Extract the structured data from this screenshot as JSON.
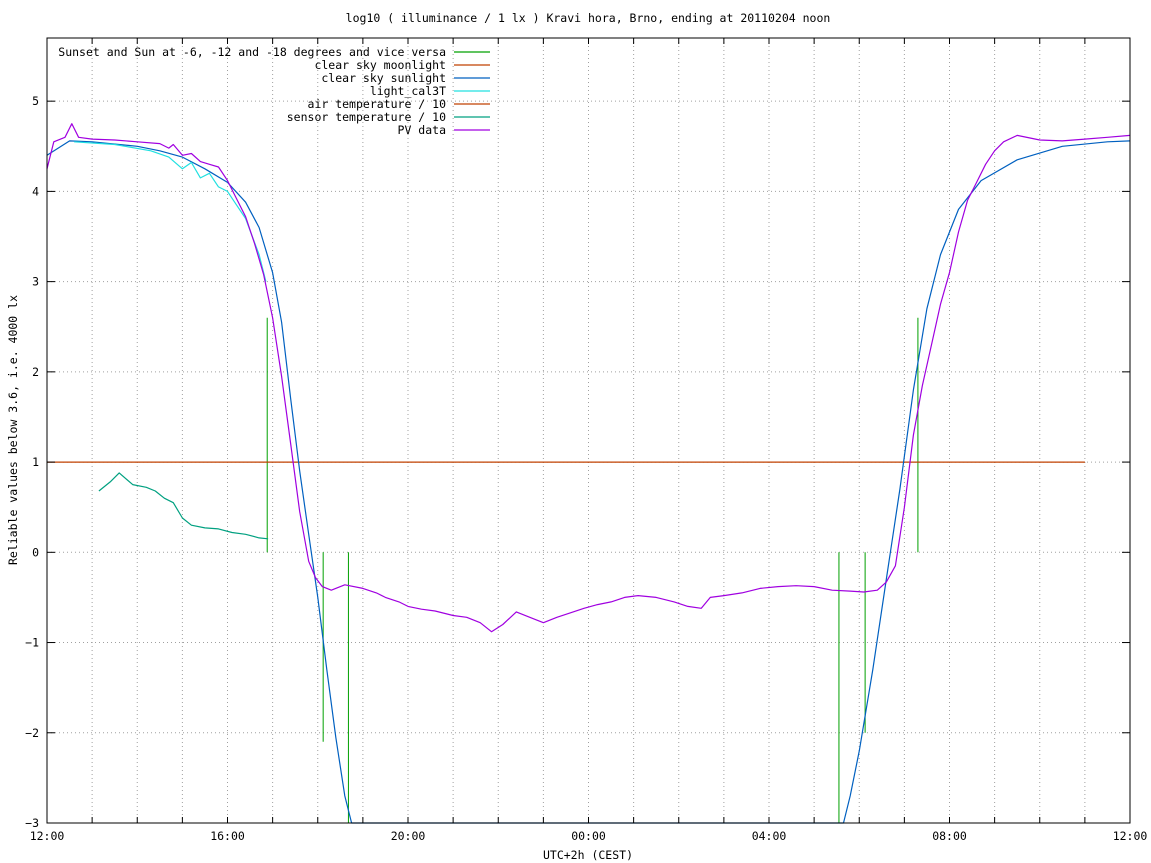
{
  "chart_data": {
    "type": "line",
    "title": "log10 ( illuminance / 1 lx ) Kravi hora, Brno, ending at 20110204 noon",
    "xlabel": "UTC+2h (CEST)",
    "ylabel": "Reliable values below 3.6, i.e. 4000 lx",
    "x_unit": "hours since 12:00",
    "xlim": [
      0,
      24
    ],
    "ylim": [
      -3,
      5.7
    ],
    "x_tick_step_hours": 1,
    "x_tick_labels": [
      {
        "x": 0,
        "label": "12:00"
      },
      {
        "x": 4,
        "label": "16:00"
      },
      {
        "x": 8,
        "label": "20:00"
      },
      {
        "x": 12,
        "label": "00:00"
      },
      {
        "x": 16,
        "label": "04:00"
      },
      {
        "x": 20,
        "label": "08:00"
      },
      {
        "x": 24,
        "label": "12:00"
      }
    ],
    "y_ticks": [
      -3,
      -2,
      -1,
      0,
      1,
      2,
      3,
      4,
      5
    ],
    "grid": true,
    "legend_position": "top-left",
    "colors": {
      "sun_events": "#00a000",
      "moonlight": "#c04000",
      "sunlight": "#0060c0",
      "light_cal3T": "#20e0e0",
      "air_temp": "#c04000",
      "sensor_temp": "#00a080",
      "pv": "#a000e0"
    },
    "series": [
      {
        "name": "Sunset and Sun at -6, -12 and -18 degrees and vice versa",
        "key": "sun_events",
        "style": "impulses",
        "points": [
          [
            4.88,
            2.6
          ],
          [
            5.48,
            0.0
          ],
          [
            6.12,
            -2.1
          ],
          [
            6.68,
            -3.0
          ],
          [
            17.55,
            -3.0
          ],
          [
            18.13,
            -2.0
          ],
          [
            18.7,
            0.0
          ],
          [
            19.3,
            2.6
          ]
        ]
      },
      {
        "name": "clear sky moonlight",
        "key": "moonlight",
        "points": [
          [
            0,
            1
          ],
          [
            23.0,
            1
          ]
        ]
      },
      {
        "name": "clear sky sunlight",
        "key": "sunlight",
        "points": [
          [
            0,
            4.4
          ],
          [
            0.5,
            4.56
          ],
          [
            1.0,
            4.55
          ],
          [
            2.0,
            4.5
          ],
          [
            2.5,
            4.45
          ],
          [
            3.0,
            4.38
          ],
          [
            3.5,
            4.25
          ],
          [
            4.0,
            4.1
          ],
          [
            4.4,
            3.88
          ],
          [
            4.7,
            3.6
          ],
          [
            5.0,
            3.1
          ],
          [
            5.2,
            2.55
          ],
          [
            5.4,
            1.7
          ],
          [
            5.6,
            0.9
          ],
          [
            5.8,
            0.2
          ],
          [
            6.0,
            -0.5
          ],
          [
            6.2,
            -1.3
          ],
          [
            6.4,
            -2.05
          ],
          [
            6.6,
            -2.7
          ],
          [
            6.75,
            -3.0
          ],
          [
            17.65,
            -3.0
          ],
          [
            17.8,
            -2.7
          ],
          [
            18.0,
            -2.2
          ],
          [
            18.3,
            -1.3
          ],
          [
            18.6,
            -0.3
          ],
          [
            18.9,
            0.7
          ],
          [
            19.2,
            1.8
          ],
          [
            19.5,
            2.7
          ],
          [
            19.8,
            3.3
          ],
          [
            20.2,
            3.8
          ],
          [
            20.7,
            4.12
          ],
          [
            21.5,
            4.35
          ],
          [
            22.5,
            4.5
          ],
          [
            23.5,
            4.55
          ],
          [
            24.0,
            4.56
          ]
        ]
      },
      {
        "name": "light_cal3T",
        "key": "light_cal3T",
        "points": [
          [
            0.6,
            4.55
          ],
          [
            1.5,
            4.52
          ],
          [
            2.3,
            4.45
          ],
          [
            2.7,
            4.38
          ],
          [
            3.0,
            4.25
          ],
          [
            3.2,
            4.32
          ],
          [
            3.4,
            4.15
          ],
          [
            3.6,
            4.2
          ],
          [
            3.8,
            4.05
          ],
          [
            4.0,
            4.0
          ],
          [
            4.2,
            3.85
          ],
          [
            4.4,
            3.7
          ],
          [
            4.55,
            3.5
          ],
          [
            4.7,
            3.3
          ],
          [
            4.85,
            3.0
          ]
        ]
      },
      {
        "name": "air temperature / 10",
        "key": "air_temp",
        "points": []
      },
      {
        "name": "sensor temperature / 10",
        "key": "sensor_temp",
        "points": [
          [
            1.15,
            0.68
          ],
          [
            1.4,
            0.78
          ],
          [
            1.6,
            0.88
          ],
          [
            1.9,
            0.75
          ],
          [
            2.2,
            0.72
          ],
          [
            2.4,
            0.68
          ],
          [
            2.6,
            0.6
          ],
          [
            2.8,
            0.55
          ],
          [
            3.0,
            0.38
          ],
          [
            3.2,
            0.3
          ],
          [
            3.5,
            0.27
          ],
          [
            3.8,
            0.26
          ],
          [
            4.1,
            0.22
          ],
          [
            4.4,
            0.2
          ],
          [
            4.7,
            0.16
          ],
          [
            4.9,
            0.15
          ]
        ]
      },
      {
        "name": "PV data",
        "key": "pv",
        "points": [
          [
            0,
            4.25
          ],
          [
            0.15,
            4.55
          ],
          [
            0.4,
            4.6
          ],
          [
            0.55,
            4.75
          ],
          [
            0.7,
            4.6
          ],
          [
            1.0,
            4.58
          ],
          [
            1.5,
            4.57
          ],
          [
            2.0,
            4.55
          ],
          [
            2.5,
            4.53
          ],
          [
            2.7,
            4.48
          ],
          [
            2.8,
            4.52
          ],
          [
            3.0,
            4.4
          ],
          [
            3.2,
            4.42
          ],
          [
            3.4,
            4.33
          ],
          [
            3.6,
            4.3
          ],
          [
            3.8,
            4.27
          ],
          [
            4.0,
            4.12
          ],
          [
            4.2,
            3.92
          ],
          [
            4.4,
            3.72
          ],
          [
            4.6,
            3.42
          ],
          [
            4.8,
            3.08
          ],
          [
            5.0,
            2.6
          ],
          [
            5.2,
            1.95
          ],
          [
            5.4,
            1.2
          ],
          [
            5.6,
            0.45
          ],
          [
            5.8,
            -0.1
          ],
          [
            5.95,
            -0.28
          ],
          [
            6.1,
            -0.38
          ],
          [
            6.3,
            -0.42
          ],
          [
            6.6,
            -0.36
          ],
          [
            7.0,
            -0.4
          ],
          [
            7.3,
            -0.45
          ],
          [
            7.5,
            -0.5
          ],
          [
            7.8,
            -0.55
          ],
          [
            8.0,
            -0.6
          ],
          [
            8.3,
            -0.63
          ],
          [
            8.6,
            -0.65
          ],
          [
            9.0,
            -0.7
          ],
          [
            9.3,
            -0.72
          ],
          [
            9.6,
            -0.78
          ],
          [
            9.85,
            -0.88
          ],
          [
            10.1,
            -0.8
          ],
          [
            10.4,
            -0.66
          ],
          [
            10.7,
            -0.72
          ],
          [
            11.0,
            -0.78
          ],
          [
            11.3,
            -0.72
          ],
          [
            11.6,
            -0.67
          ],
          [
            11.9,
            -0.62
          ],
          [
            12.2,
            -0.58
          ],
          [
            12.5,
            -0.55
          ],
          [
            12.8,
            -0.5
          ],
          [
            13.1,
            -0.48
          ],
          [
            13.5,
            -0.5
          ],
          [
            13.9,
            -0.55
          ],
          [
            14.2,
            -0.6
          ],
          [
            14.5,
            -0.62
          ],
          [
            14.7,
            -0.5
          ],
          [
            15.0,
            -0.48
          ],
          [
            15.4,
            -0.45
          ],
          [
            15.8,
            -0.4
          ],
          [
            16.2,
            -0.38
          ],
          [
            16.6,
            -0.37
          ],
          [
            17.0,
            -0.38
          ],
          [
            17.4,
            -0.42
          ],
          [
            17.8,
            -0.43
          ],
          [
            18.1,
            -0.44
          ],
          [
            18.4,
            -0.42
          ],
          [
            18.6,
            -0.33
          ],
          [
            18.8,
            -0.15
          ],
          [
            19.0,
            0.5
          ],
          [
            19.2,
            1.3
          ],
          [
            19.4,
            1.85
          ],
          [
            19.6,
            2.3
          ],
          [
            19.8,
            2.75
          ],
          [
            20.0,
            3.1
          ],
          [
            20.2,
            3.55
          ],
          [
            20.4,
            3.9
          ],
          [
            20.6,
            4.1
          ],
          [
            20.8,
            4.3
          ],
          [
            21.0,
            4.45
          ],
          [
            21.2,
            4.55
          ],
          [
            21.5,
            4.62
          ],
          [
            22.0,
            4.57
          ],
          [
            22.5,
            4.56
          ],
          [
            23.0,
            4.58
          ],
          [
            23.5,
            4.6
          ],
          [
            24.0,
            4.62
          ]
        ]
      }
    ]
  }
}
